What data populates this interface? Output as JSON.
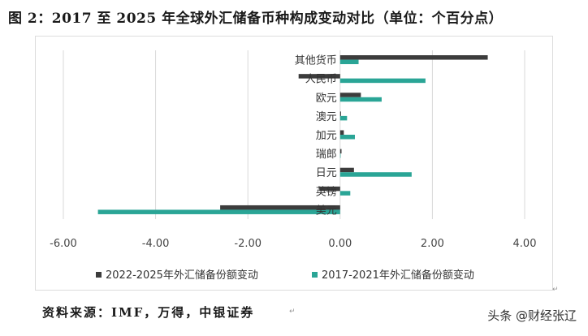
{
  "title": "图 2：2017 至 2025 年全球外汇储备币种构成变动对比（单位：个百分点）",
  "source": "资料来源：IMF，万得，中银证券",
  "watermark": "头条 @财经张辽",
  "marks": {
    "after_frame": "↵",
    "after_source": "↵"
  },
  "chart_data": {
    "type": "bar",
    "orientation": "horizontal",
    "categories": [
      "其他货币",
      "人民币",
      "欧元",
      "澳元",
      "加元",
      "瑞郎",
      "日元",
      "英镑",
      "美元"
    ],
    "series": [
      {
        "name": "2022-2025年外汇储备份额变动",
        "color": "#3c3c3c",
        "values": [
          3.2,
          -0.9,
          0.45,
          0.02,
          0.08,
          0.03,
          0.3,
          -0.45,
          -2.6
        ]
      },
      {
        "name": "2017-2021年外汇储备份额变动",
        "color": "#2aa596",
        "values": [
          0.4,
          1.85,
          0.9,
          0.15,
          0.32,
          0.0,
          1.55,
          0.22,
          -5.25
        ]
      }
    ],
    "xlim": [
      -6,
      4
    ],
    "x_ticks": [
      "-6.00",
      "-4.00",
      "-2.00",
      "0.00",
      "2.00",
      "4.00"
    ],
    "x_tick_values": [
      -6,
      -4,
      -2,
      0,
      2,
      4
    ],
    "grid": "vertical",
    "legend": "bottom"
  }
}
